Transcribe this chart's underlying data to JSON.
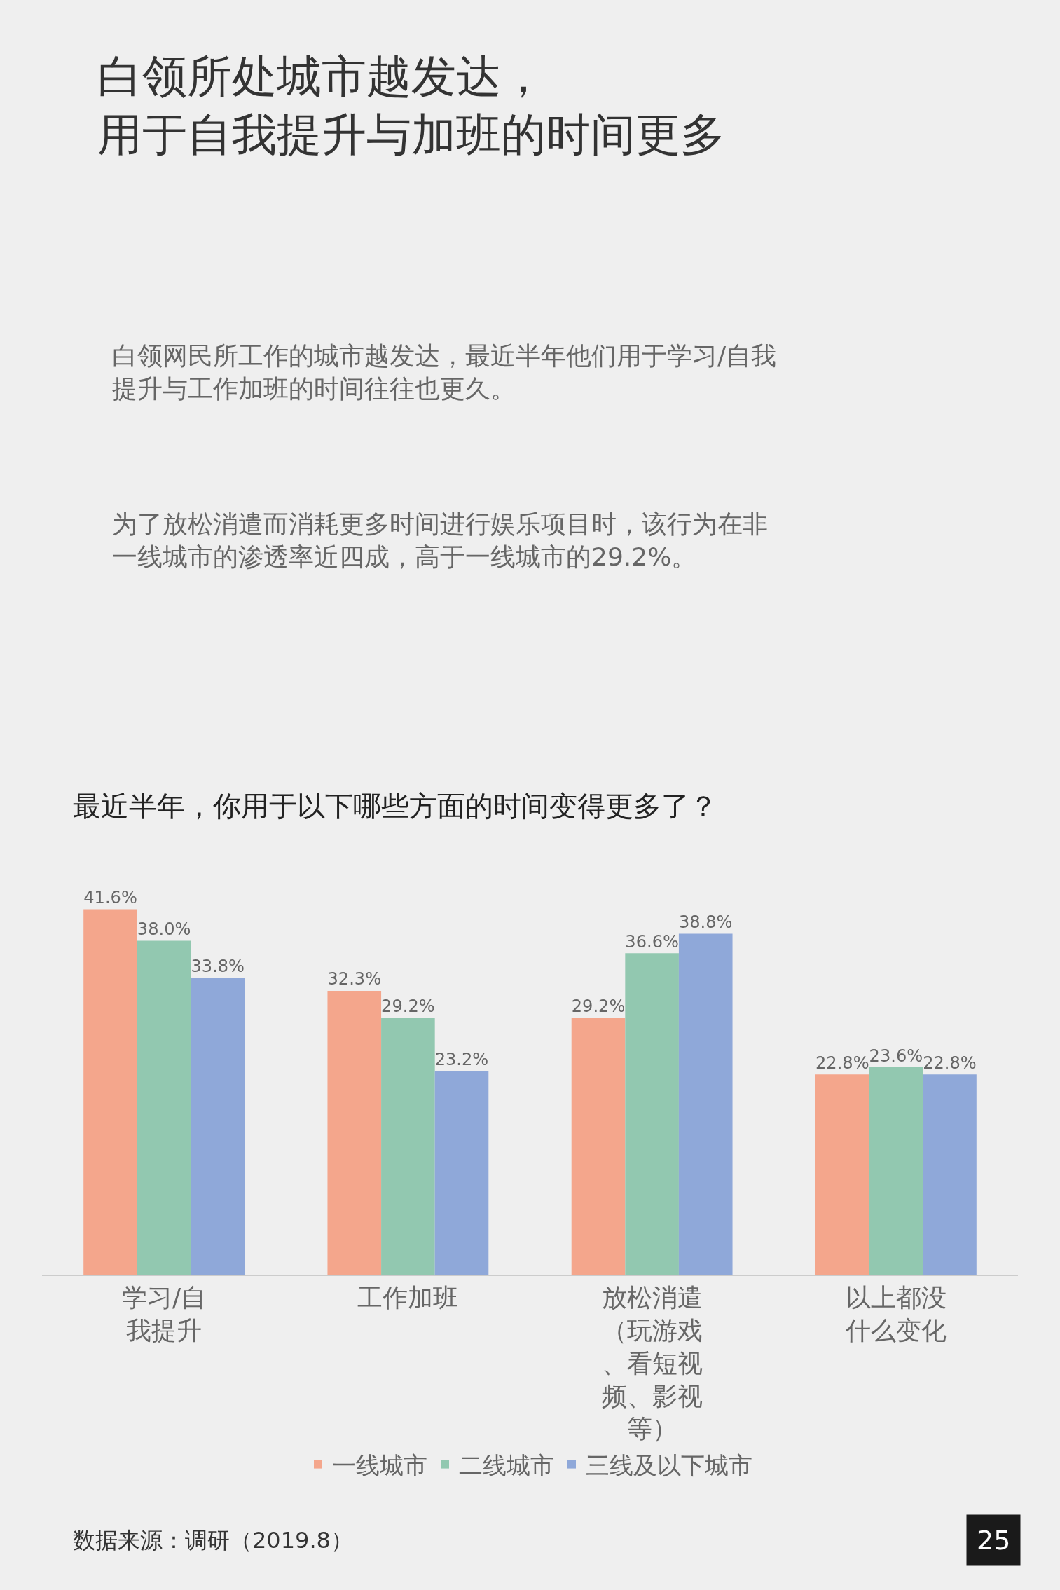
{
  "chart_data": {
    "type": "bar",
    "title": "白领所处城市越发达，用于自我提升与加班的时间更多",
    "subtitle": "白领网民所工作的城市越发达，最近半年他们用于学习/自我提升与工作加班的时间往往也更久。",
    "annotations": [
      "为了放松消遣而消耗更多时间进行娱乐项目时，该行为在非一线城市的渗透率近四成，高于一线城市的29.2%。",
      "最近半年，你用于以下哪些方面的时间变得更多了？",
      "数据来源：调研（2019.8）",
      "25"
    ],
    "categories": [
      "学习/自我提升",
      "工作加班",
      "放松消遣（玩游戏、看短视频、影视等）",
      "以上都没什么变化"
    ],
    "series": [
      {
        "name": "一线城市",
        "color": "#f4a68c",
        "values": [
          41.6,
          32.3,
          29.2,
          22.8
        ],
        "value_labels": [
          "41.6%",
          "32.3%",
          "29.2%",
          "22.8%"
        ]
      },
      {
        "name": "二线城市",
        "color": "#92c8b0",
        "values": [
          38.0,
          29.2,
          36.6,
          23.6
        ],
        "value_labels": [
          "38.0%",
          "29.2%",
          "36.6%",
          "23.6%"
        ]
      },
      {
        "name": "三线及以下城市",
        "color": "#8fa8d9",
        "values": [
          33.8,
          23.2,
          38.8,
          22.8
        ],
        "value_labels": [
          "33.8%",
          "23.2%",
          "38.8%",
          "22.8%"
        ]
      }
    ],
    "legend": "bottom",
    "grid": false
  }
}
